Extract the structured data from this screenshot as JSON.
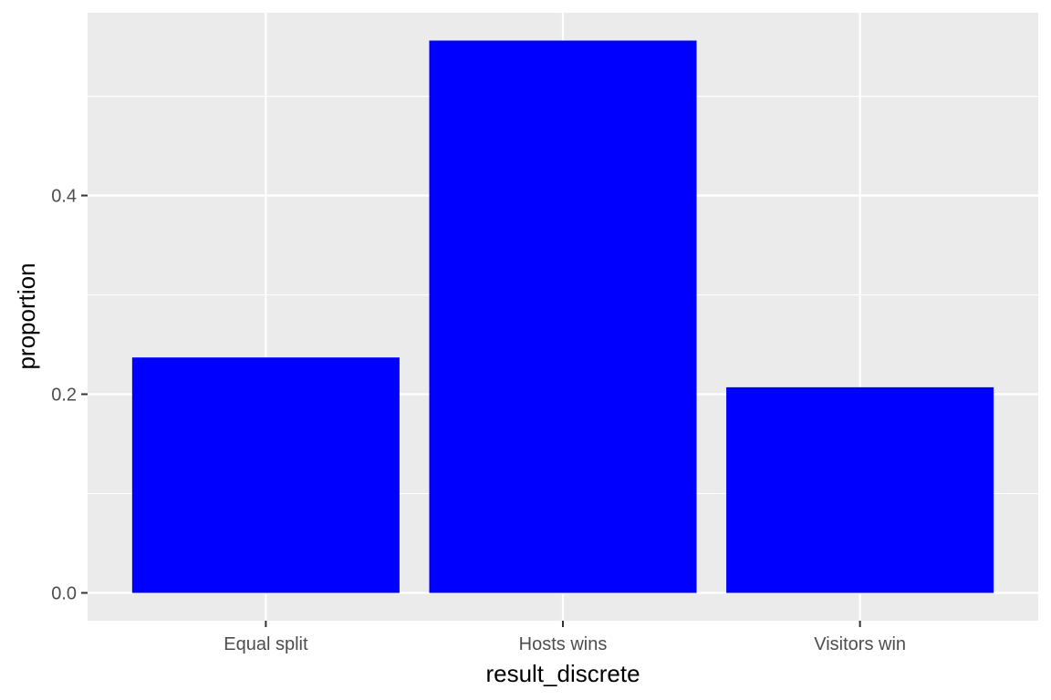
{
  "chart_data": {
    "type": "bar",
    "title": "",
    "xlabel": "result_discrete",
    "ylabel": "proportion",
    "categories": [
      "Equal split",
      "Hosts wins",
      "Visitors win"
    ],
    "values": [
      0.237,
      0.556,
      0.207
    ],
    "ylim": [
      -0.028,
      0.584
    ],
    "y_ticks": [
      0.0,
      0.2,
      0.4
    ],
    "y_tick_labels": [
      "0.0",
      "0.2",
      "0.4"
    ],
    "grid": true,
    "legend": "none",
    "colors": {
      "bar": "#0000ff",
      "panel_background": "#ebebeb",
      "grid": "#ffffff",
      "tick_text": "#4d4d4d",
      "axis_title": "#000000"
    }
  }
}
